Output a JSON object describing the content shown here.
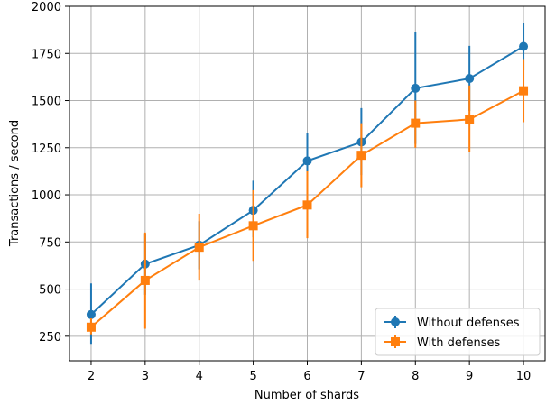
{
  "chart_data": {
    "type": "line",
    "title": "",
    "xlabel": "Number of shards",
    "ylabel": "Transactions / second",
    "x": [
      2,
      3,
      4,
      5,
      6,
      7,
      8,
      9,
      10
    ],
    "xlim": [
      1.6,
      10.4
    ],
    "ylim": [
      120,
      2000
    ],
    "yticks": [
      250,
      500,
      750,
      1000,
      1250,
      1500,
      1750,
      2000
    ],
    "grid": true,
    "legend_position": "lower-right",
    "series": [
      {
        "name": "Without defenses",
        "color": "#1f77b4",
        "marker": "circle",
        "values": [
          365,
          633,
          733,
          918,
          1180,
          1280,
          1565,
          1617,
          1787
        ],
        "error_low": [
          205,
          470,
          605,
          775,
          1035,
          1105,
          1270,
          1445,
          1660
        ],
        "error_high": [
          530,
          795,
          860,
          1075,
          1328,
          1460,
          1865,
          1790,
          1910
        ]
      },
      {
        "name": "With defenses",
        "color": "#ff7f0e",
        "marker": "square",
        "values": [
          298,
          546,
          722,
          836,
          946,
          1210,
          1380,
          1400,
          1552
        ],
        "error_low": [
          260,
          290,
          545,
          650,
          770,
          1040,
          1250,
          1225,
          1385
        ],
        "error_high": [
          345,
          800,
          900,
          1025,
          1125,
          1380,
          1500,
          1580,
          1720
        ]
      }
    ]
  }
}
